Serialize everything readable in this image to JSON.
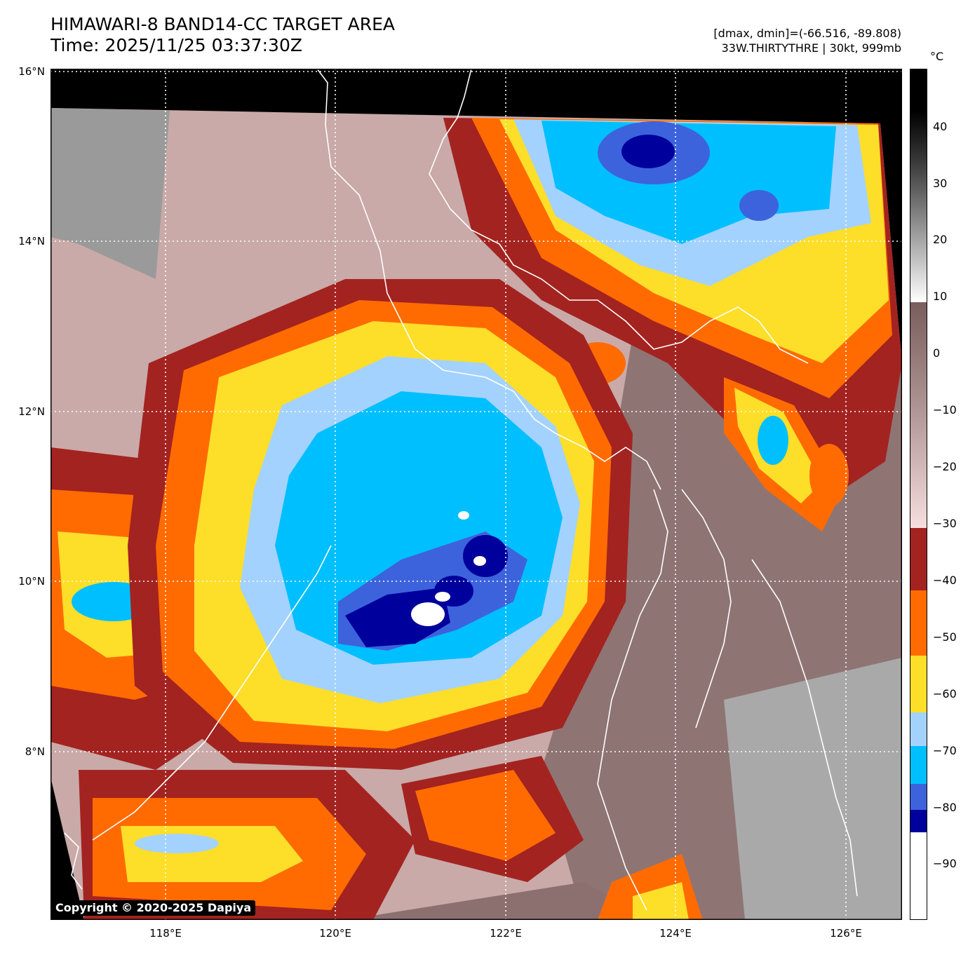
{
  "header": {
    "title": "HIMAWARI-8 BAND14-CC TARGET AREA",
    "time": "Time: 2025/11/25 03:37:30Z",
    "range": "[dmax, dmin]=(-66.516, -89.808)",
    "storm": "33W.THIRTYTHRE | 30kt, 999mb"
  },
  "map": {
    "lat_labels": [
      "16°N",
      "14°N",
      "12°N",
      "10°N",
      "8°N"
    ],
    "lon_labels": [
      "118°E",
      "120°E",
      "122°E",
      "124°E",
      "126°E"
    ],
    "gridline_color": "#ffffff",
    "coastline_color": "#ffffff",
    "background_color": "#000000"
  },
  "colorbar": {
    "unit": "°C",
    "ticks": [
      "40",
      "30",
      "20",
      "10",
      "0",
      "−10",
      "−20",
      "−30",
      "−40",
      "−50",
      "−60",
      "−70",
      "−80",
      "−90"
    ],
    "bins": [
      {
        "from": -100,
        "to": -85,
        "color": "#ffffff"
      },
      {
        "from": -85,
        "to": -81,
        "color": "#00009c"
      },
      {
        "from": -81,
        "to": -77,
        "color": "#3d63dc"
      },
      {
        "from": -77,
        "to": -70,
        "color": "#00bfff"
      },
      {
        "from": -70,
        "to": -63,
        "color": "#a4d2ff"
      },
      {
        "from": -63,
        "to": -53,
        "color": "#fdde29"
      },
      {
        "from": -53,
        "to": -41.5,
        "color": "#ff6b00"
      },
      {
        "from": -41.5,
        "to": -30.5,
        "color": "#a32320"
      }
    ]
  },
  "copyright": "Copyright © 2020-2025 Dapiya"
}
